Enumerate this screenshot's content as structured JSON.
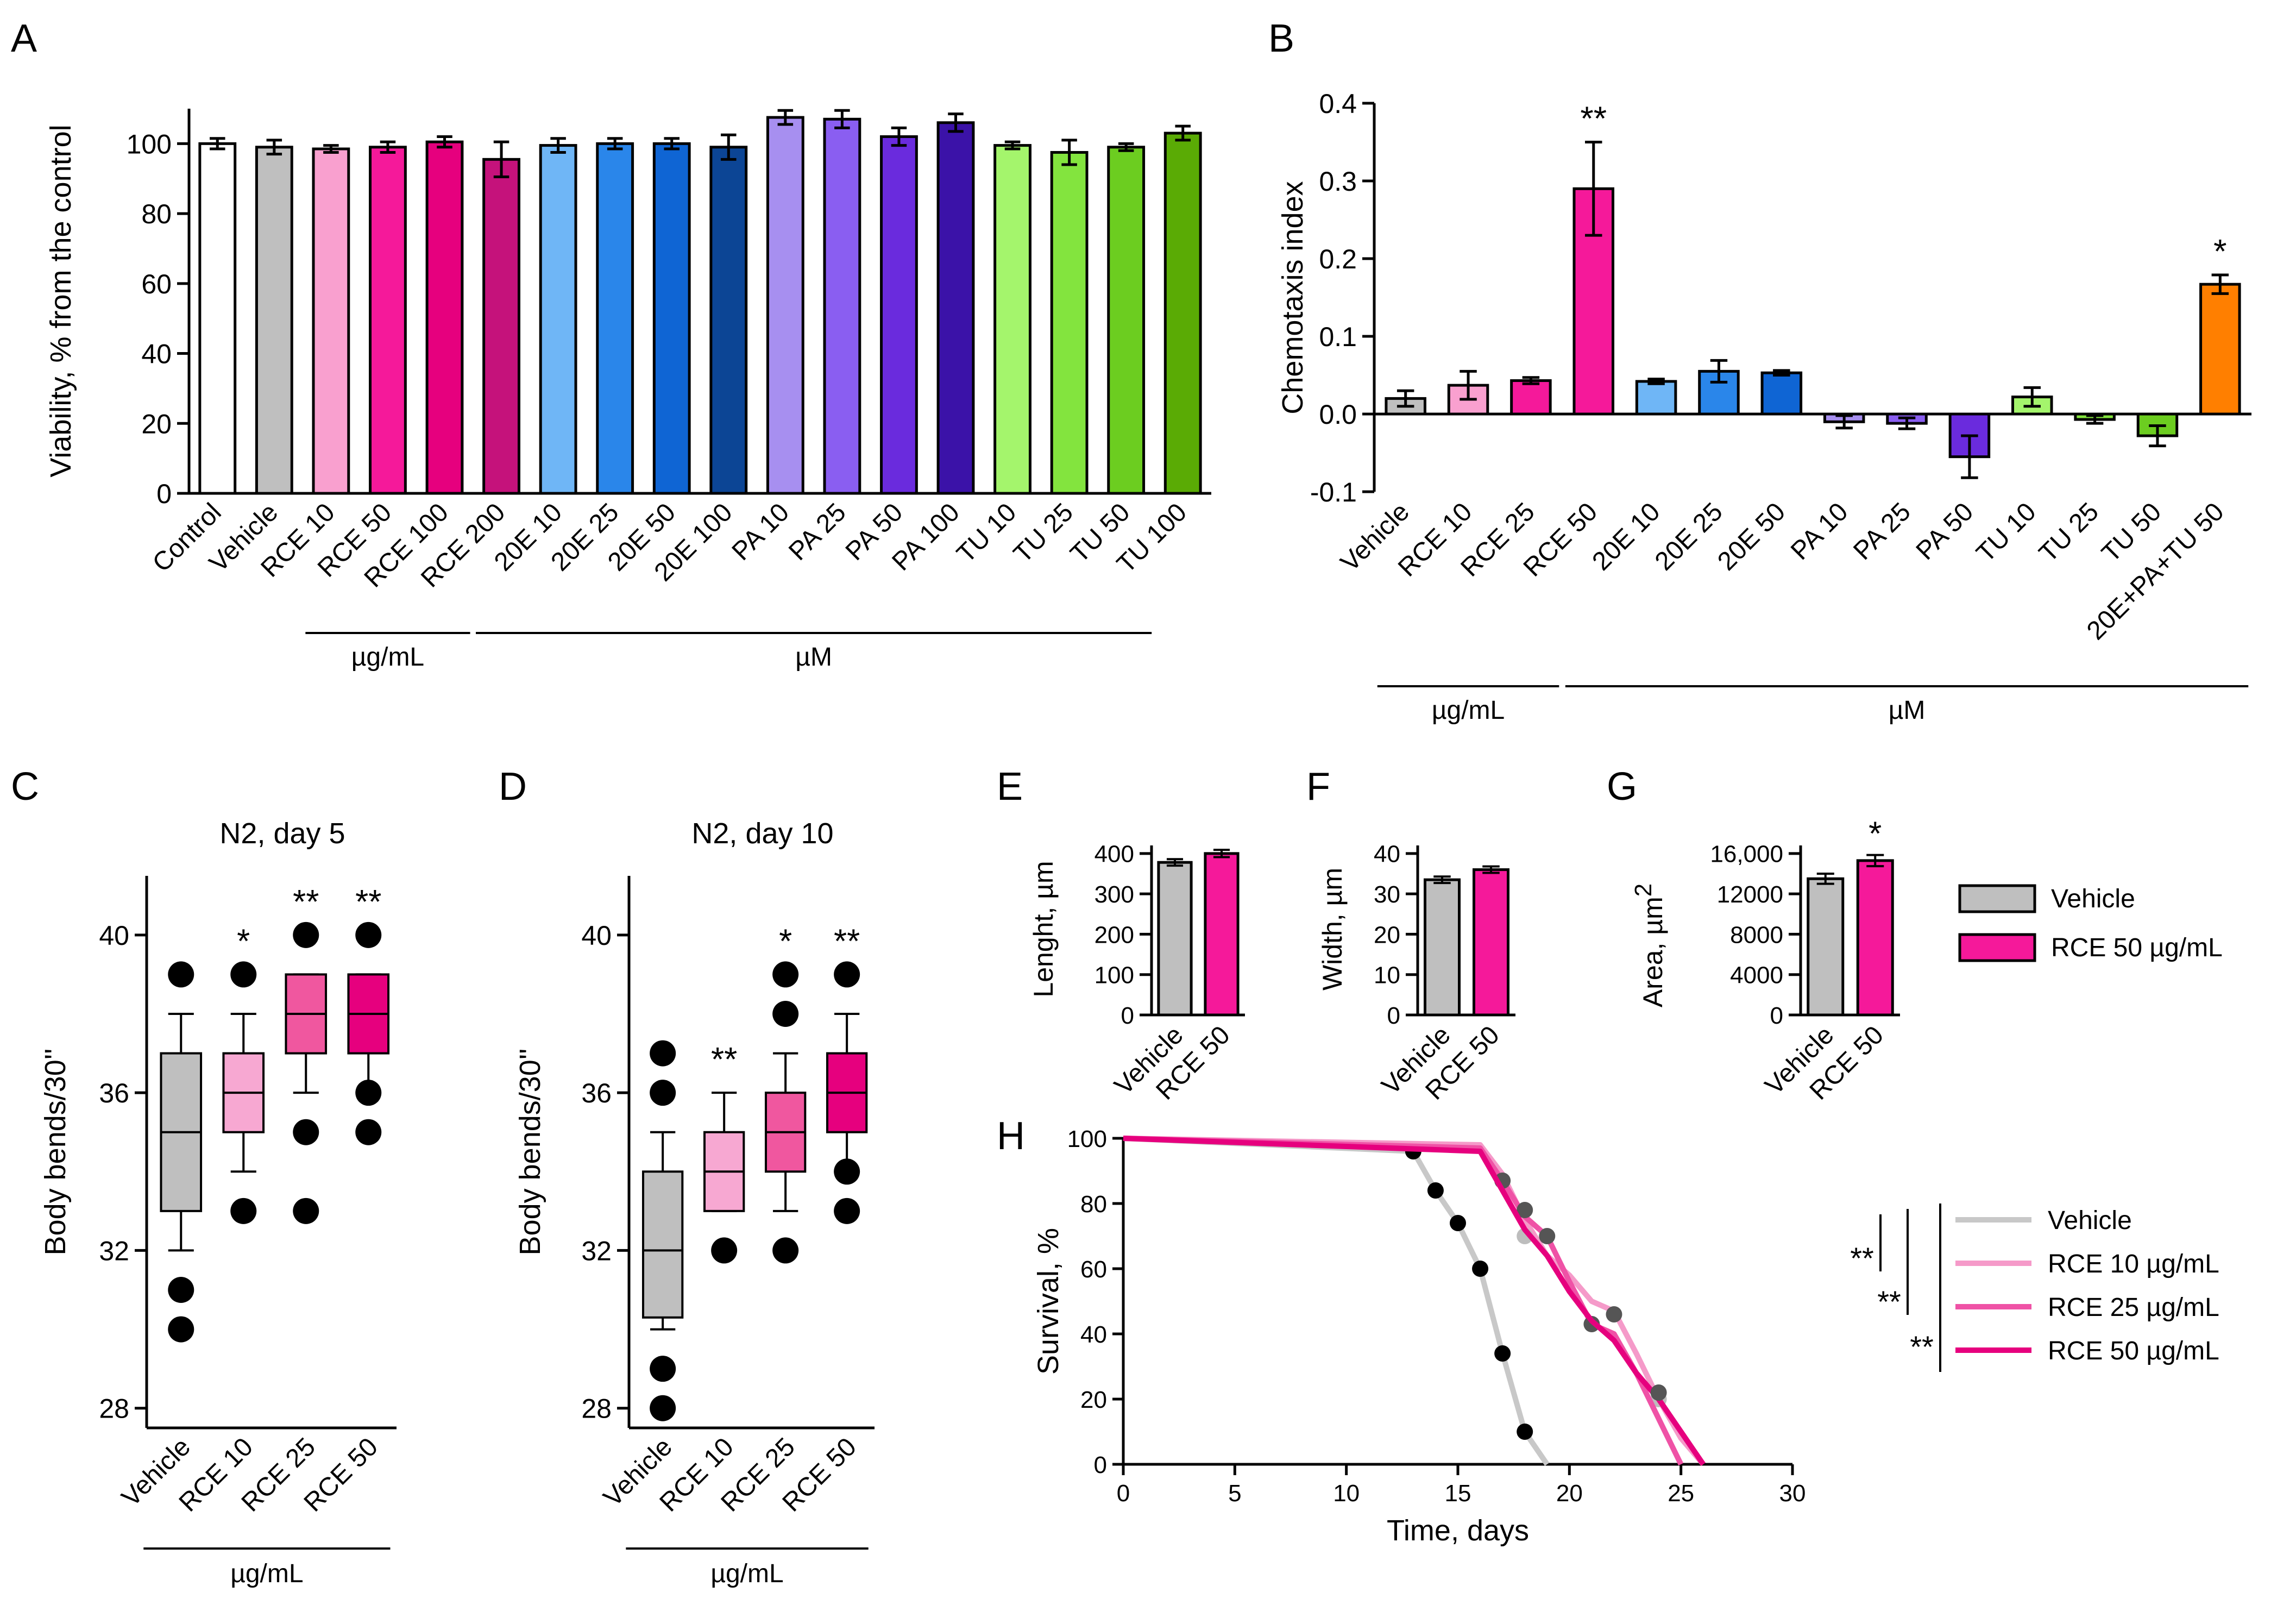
{
  "figure": {
    "panel_letters": [
      "A",
      "B",
      "C",
      "D",
      "E",
      "F",
      "G",
      "H"
    ],
    "colors": {
      "white": "#ffffff",
      "gray": "#bfbfbf",
      "pink_light": "#f9a0cf",
      "pink": "#f5199a",
      "pink_mid": "#ef3d9b",
      "pink_dark": "#e6007e",
      "magenta_dark": "#c5127b",
      "blue_light": "#6fb6f6",
      "blue": "#2a86ea",
      "blue_mid": "#0f65d4",
      "blue_dark": "#0c4595",
      "purple_light": "#a78ff0",
      "purple": "#8a5ef1",
      "purple_mid": "#6a2bdd",
      "purple_dark": "#3b12a8",
      "green_light": "#a4f56c",
      "green": "#83e43e",
      "green_mid": "#6ccd20",
      "green_dark": "#5aab05",
      "orange": "#ff7f00",
      "box_c1": "#bfbfbf",
      "box_c2": "#f7a8d2",
      "box_c3": "#f0579f",
      "box_c4": "#e6007e",
      "dot_black": "#000000",
      "dot_dark": "#555555",
      "dot_light": "#bdbdbd",
      "line_gray": "#c8c8c8",
      "line_pink_light": "#f59ac9",
      "line_pink": "#ef52a6",
      "line_pink_dark": "#e6007e"
    }
  },
  "chart_data": [
    {
      "panel": "A",
      "type": "bar",
      "ylabel": "Viability, % from the control",
      "ylim": [
        0,
        110
      ],
      "yticks": [
        0,
        20,
        40,
        60,
        80,
        100
      ],
      "categories": [
        "Control",
        "Vehicle",
        "RCE 10",
        "RCE 50",
        "RCE 100",
        "RCE 200",
        "20E 10",
        "20E 25",
        "20E 50",
        "20E 100",
        "PA 10",
        "PA 25",
        "PA 50",
        "PA 100",
        "TU 10",
        "TU 25",
        "TU 50",
        "TU 100"
      ],
      "values": [
        100,
        99,
        98.5,
        99,
        100.5,
        95.5,
        99.5,
        100,
        100,
        99,
        107.5,
        107,
        102,
        106,
        99.5,
        97.5,
        99,
        103
      ],
      "errors": [
        1.5,
        2,
        1,
        1.5,
        1.5,
        5,
        2,
        1.5,
        1.5,
        3.5,
        2,
        2.5,
        2.5,
        2.5,
        1,
        3.5,
        1,
        2
      ],
      "bar_colors": [
        "white",
        "gray",
        "pink_light",
        "pink",
        "pink_dark",
        "magenta_dark",
        "blue_light",
        "blue",
        "blue_mid",
        "blue_dark",
        "purple_light",
        "purple",
        "purple_mid",
        "purple_dark",
        "green_light",
        "green",
        "green_mid",
        "green_dark"
      ],
      "groups": [
        {
          "label": "µg/mL",
          "first": 2,
          "last": 4
        },
        {
          "label": "µM",
          "first": 5,
          "last": 16
        }
      ]
    },
    {
      "panel": "B",
      "type": "bar",
      "ylabel": "Chemotaxis index",
      "ylim": [
        -0.1,
        0.4
      ],
      "yticks": [
        -0.1,
        0.0,
        0.1,
        0.2,
        0.3,
        0.4
      ],
      "ytick_labels": [
        "-0.1",
        "0.0",
        "0.1",
        "0.2",
        "0.3",
        "0.4"
      ],
      "categories": [
        "Vehicle",
        "RCE 10",
        "RCE 25",
        "RCE 50",
        "20E 10",
        "20E 25",
        "20E 50",
        "PA 10",
        "PA 25",
        "PA 50",
        "TU 10",
        "TU 25",
        "TU 50",
        "20E+PA+TU 50"
      ],
      "values": [
        0.02,
        0.037,
        0.043,
        0.29,
        0.042,
        0.055,
        0.053,
        -0.01,
        -0.012,
        -0.055,
        0.022,
        -0.007,
        -0.028,
        0.167
      ],
      "errors": [
        0.01,
        0.018,
        0.004,
        0.06,
        0.003,
        0.014,
        0.003,
        0.008,
        0.007,
        0.027,
        0.012,
        0.005,
        0.013,
        0.012
      ],
      "bar_colors": [
        "gray",
        "pink_light",
        "pink",
        "pink",
        "blue_light",
        "blue",
        "blue_mid",
        "purple_light",
        "purple",
        "purple_mid",
        "green_light",
        "green",
        "green_mid",
        "orange"
      ],
      "significance": [
        "",
        "",
        "",
        "**",
        "",
        "",
        "",
        "",
        "",
        "",
        "",
        "",
        "",
        "*"
      ],
      "groups": [
        {
          "label": "µg/mL",
          "first": 0,
          "last": 2
        },
        {
          "label": "µM",
          "first": 3,
          "last": 13
        }
      ]
    },
    {
      "panel": "C",
      "type": "box",
      "title": "N2, day 5",
      "ylabel": "Body bends/30''",
      "ylim": [
        27.5,
        41.5
      ],
      "yticks": [
        28,
        32,
        36,
        40
      ],
      "categories": [
        "Vehicle",
        "RCE 10",
        "RCE 25",
        "RCE 50"
      ],
      "boxes": [
        {
          "whisker_low": 32,
          "q1": 33,
          "median": 35,
          "q3": 37,
          "whisker_high": 38,
          "outliers": [
            30,
            31,
            39
          ]
        },
        {
          "whisker_low": 34,
          "q1": 35,
          "median": 36,
          "q3": 37,
          "whisker_high": 38,
          "outliers": [
            33,
            39
          ]
        },
        {
          "whisker_low": 36,
          "q1": 37,
          "median": 38,
          "q3": 39,
          "whisker_high": 39,
          "outliers": [
            33,
            35,
            40
          ]
        },
        {
          "whisker_low": 36,
          "q1": 37,
          "median": 38,
          "q3": 39,
          "whisker_high": 39,
          "outliers": [
            35,
            36,
            40
          ]
        }
      ],
      "box_colors": [
        "box_c1",
        "box_c2",
        "box_c3",
        "box_c4"
      ],
      "significance": [
        "",
        "*",
        "**",
        "**"
      ],
      "group": {
        "label": "µg/mL",
        "first": 0,
        "last": 3
      }
    },
    {
      "panel": "D",
      "type": "box",
      "title": "N2, day 10",
      "ylabel": "Body bends/30''",
      "ylim": [
        27.5,
        41.5
      ],
      "yticks": [
        28,
        32,
        36,
        40
      ],
      "categories": [
        "Vehicle",
        "RCE 10",
        "RCE 25",
        "RCE 50"
      ],
      "boxes": [
        {
          "whisker_low": 30,
          "q1": 30.3,
          "median": 32,
          "q3": 34,
          "whisker_high": 35,
          "outliers": [
            28,
            29,
            36,
            37
          ]
        },
        {
          "whisker_low": 33,
          "q1": 33,
          "median": 34,
          "q3": 35,
          "whisker_high": 36,
          "outliers": [
            32
          ]
        },
        {
          "whisker_low": 33,
          "q1": 34,
          "median": 35,
          "q3": 36,
          "whisker_high": 37,
          "outliers": [
            32,
            38,
            39
          ]
        },
        {
          "whisker_low": 34,
          "q1": 35,
          "median": 36,
          "q3": 37,
          "whisker_high": 38,
          "outliers": [
            33,
            34,
            39
          ]
        }
      ],
      "box_colors": [
        "box_c1",
        "box_c2",
        "box_c3",
        "box_c4"
      ],
      "significance": [
        "",
        "**",
        "*",
        "**"
      ],
      "group": {
        "label": "µg/mL",
        "first": 0,
        "last": 3
      }
    },
    {
      "panel": "E",
      "type": "bar",
      "ylabel": "Lenght, µm",
      "ylim": [
        0,
        420
      ],
      "yticks": [
        0,
        100,
        200,
        300,
        400
      ],
      "categories": [
        "Vehicle",
        "RCE 50"
      ],
      "values": [
        378,
        400
      ],
      "errors": [
        8,
        9
      ],
      "bar_colors": [
        "gray",
        "pink"
      ],
      "significance": [
        "",
        ""
      ]
    },
    {
      "panel": "F",
      "type": "bar",
      "ylabel": "Width, µm",
      "ylim": [
        0,
        42
      ],
      "yticks": [
        0,
        10,
        20,
        30,
        40
      ],
      "categories": [
        "Vehicle",
        "RCE 50"
      ],
      "values": [
        33.5,
        36
      ],
      "errors": [
        0.8,
        0.8
      ],
      "bar_colors": [
        "gray",
        "pink"
      ],
      "significance": [
        "",
        ""
      ]
    },
    {
      "panel": "G",
      "type": "bar",
      "ylabel_main": "Area, µm",
      "ylabel_sup": "2",
      "ylim": [
        0,
        16800
      ],
      "yticks": [
        0,
        4000,
        8000,
        12000,
        16000
      ],
      "ytick_labels": [
        "0",
        "4000",
        "8000",
        "12000",
        "16,000"
      ],
      "categories": [
        "Vehicle",
        "RCE 50"
      ],
      "values": [
        13500,
        15300
      ],
      "errors": [
        500,
        550
      ],
      "bar_colors": [
        "gray",
        "pink"
      ],
      "significance": [
        "",
        "*"
      ]
    },
    {
      "panel": "EFG-legend",
      "type": "legend",
      "items": [
        {
          "label": "Vehicle",
          "color": "gray"
        },
        {
          "label": "RCE 50 µg/mL",
          "color": "pink"
        }
      ]
    },
    {
      "panel": "H",
      "type": "line",
      "xlabel": "Time, days",
      "ylabel": "Survival, %",
      "xlim": [
        0,
        30
      ],
      "ylim": [
        0,
        100
      ],
      "xticks": [
        0,
        5,
        10,
        15,
        20,
        25,
        30
      ],
      "yticks": [
        0,
        20,
        40,
        60,
        80,
        100
      ],
      "series": [
        {
          "name": "Vehicle",
          "color": "line_gray",
          "dot": "dot_black",
          "x": [
            0,
            13,
            14,
            15,
            16,
            17,
            18,
            19
          ],
          "y": [
            100,
            96,
            84,
            74,
            60,
            34,
            10,
            0
          ],
          "censor_x": [
            13,
            14,
            15,
            16,
            17,
            18
          ],
          "censor_y": [
            96,
            84,
            74,
            60,
            34,
            10
          ]
        },
        {
          "name": "RCE 10 µg/mL",
          "color": "line_pink_light",
          "dot": "dot_light",
          "x": [
            0,
            16,
            17,
            18,
            19,
            20,
            21,
            22,
            23,
            24,
            25,
            26
          ],
          "y": [
            100,
            98,
            89,
            75,
            64,
            58,
            50,
            47,
            34,
            20,
            8,
            0
          ],
          "censor_x": [
            18,
            24
          ],
          "censor_y": [
            70,
            20
          ]
        },
        {
          "name": "RCE 25 µg/mL",
          "color": "line_pink",
          "dot": "dot_dark",
          "x": [
            0,
            16,
            17,
            18,
            19,
            20,
            21,
            22,
            23,
            24,
            25
          ],
          "y": [
            100,
            97,
            87,
            76,
            70,
            56,
            43,
            40,
            28,
            14,
            0
          ],
          "censor_x": [
            17,
            18,
            19,
            21
          ],
          "censor_y": [
            87,
            78,
            70,
            43
          ]
        },
        {
          "name": "RCE 50 µg/mL",
          "color": "line_pink_dark",
          "dot": "dot_dark",
          "x": [
            0,
            16,
            17,
            18,
            19,
            20,
            21,
            22,
            23,
            24,
            25,
            26
          ],
          "y": [
            100,
            96,
            84,
            72,
            64,
            53,
            44,
            38,
            28,
            20,
            10,
            0
          ],
          "censor_x": [
            22,
            24
          ],
          "censor_y": [
            46,
            22
          ]
        }
      ],
      "legend_significance": [
        "**",
        "**",
        "**"
      ]
    }
  ]
}
